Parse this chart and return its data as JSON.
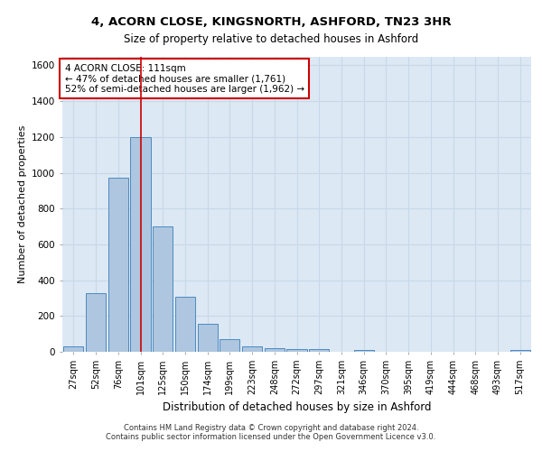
{
  "title_line1": "4, ACORN CLOSE, KINGSNORTH, ASHFORD, TN23 3HR",
  "title_line2": "Size of property relative to detached houses in Ashford",
  "xlabel": "Distribution of detached houses by size in Ashford",
  "ylabel": "Number of detached properties",
  "categories": [
    "27sqm",
    "52sqm",
    "76sqm",
    "101sqm",
    "125sqm",
    "150sqm",
    "174sqm",
    "199sqm",
    "223sqm",
    "248sqm",
    "272sqm",
    "297sqm",
    "321sqm",
    "346sqm",
    "370sqm",
    "395sqm",
    "419sqm",
    "444sqm",
    "468sqm",
    "493sqm",
    "517sqm"
  ],
  "values": [
    30,
    325,
    970,
    1200,
    700,
    305,
    155,
    70,
    30,
    20,
    15,
    15,
    0,
    12,
    0,
    0,
    0,
    0,
    0,
    0,
    12
  ],
  "bar_color": "#aec6e0",
  "bar_edge_color": "#4d8abf",
  "grid_color": "#c8d8e8",
  "bg_color": "#dce8f4",
  "vline_x": 3,
  "vline_color": "#cc0000",
  "annotation_text": "4 ACORN CLOSE: 111sqm\n← 47% of detached houses are smaller (1,761)\n52% of semi-detached houses are larger (1,962) →",
  "annotation_box_color": "#cc0000",
  "ylim": [
    0,
    1650
  ],
  "yticks": [
    0,
    200,
    400,
    600,
    800,
    1000,
    1200,
    1400,
    1600
  ],
  "footer_line1": "Contains HM Land Registry data © Crown copyright and database right 2024.",
  "footer_line2": "Contains public sector information licensed under the Open Government Licence v3.0."
}
